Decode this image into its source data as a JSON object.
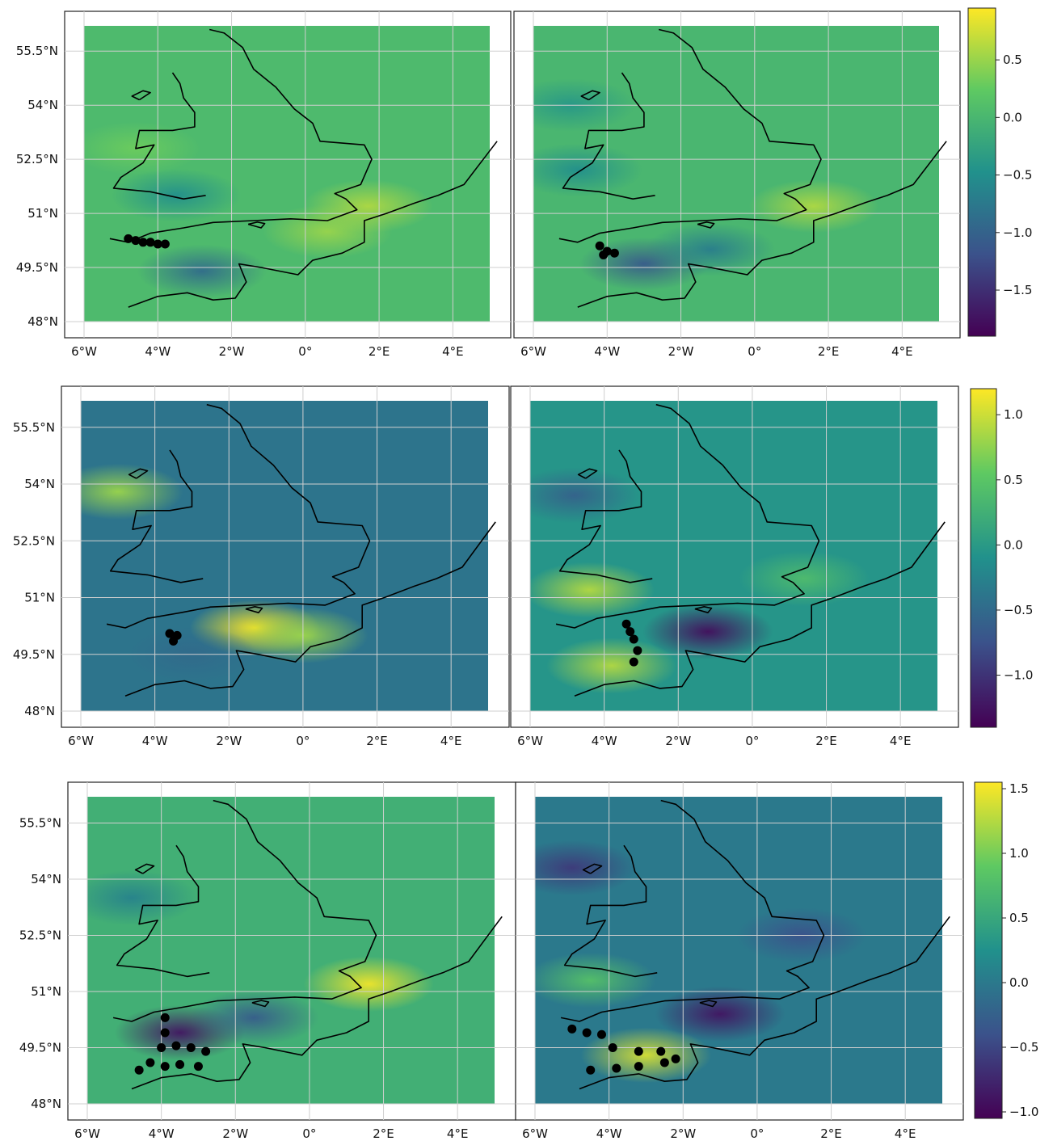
{
  "figure": {
    "background": "#ffffff",
    "colormap": "viridis",
    "colormap_stops": [
      "#440154",
      "#3b528b",
      "#21918c",
      "#5ec962",
      "#fde725"
    ],
    "map_extent": {
      "lon": [
        -6,
        5
      ],
      "lat": [
        48,
        56.2
      ]
    },
    "gridlines": true,
    "lon_ticks": [
      -6,
      -4,
      -2,
      0,
      2,
      4
    ],
    "lon_tick_labels": [
      "6°W",
      "4°W",
      "2°W",
      "0°",
      "2°E",
      "4°E"
    ],
    "lat_ticks": [
      48,
      49.5,
      51,
      52.5,
      54,
      55.5
    ],
    "lat_tick_labels": [
      "48°N",
      "49.5°N",
      "51°N",
      "52.5°N",
      "54°N",
      "55.5°N"
    ]
  },
  "rows": [
    {
      "colorbar": {
        "range": [
          -1.9,
          0.95
        ],
        "ticks": [
          0.5,
          0.0,
          -0.5,
          -1.0,
          -1.5
        ],
        "tick_labels": [
          "0.5",
          "0.0",
          "−0.5",
          "−1.0",
          "−1.5"
        ]
      },
      "panels": [
        {
          "base_value": 0.05,
          "anomalies": [
            {
              "lon": 0.6,
              "lat": 50.5,
              "value": 0.5
            },
            {
              "lon": 1.7,
              "lat": 51.2,
              "value": 0.6
            },
            {
              "lon": -2.8,
              "lat": 49.4,
              "value": -0.9
            },
            {
              "lon": -3.5,
              "lat": 51.5,
              "value": -0.5
            },
            {
              "lon": -4.6,
              "lat": 52.8,
              "value": 0.3
            }
          ],
          "markers": [
            {
              "lon": -4.8,
              "lat": 50.3
            },
            {
              "lon": -4.6,
              "lat": 50.25
            },
            {
              "lon": -4.4,
              "lat": 50.2
            },
            {
              "lon": -4.2,
              "lat": 50.2
            },
            {
              "lon": -4.0,
              "lat": 50.15
            },
            {
              "lon": -3.8,
              "lat": 50.15
            }
          ]
        },
        {
          "base_value": 0.0,
          "anomalies": [
            {
              "lon": 1.6,
              "lat": 51.2,
              "value": 0.6
            },
            {
              "lon": -3.0,
              "lat": 49.6,
              "value": -1.1
            },
            {
              "lon": -1.2,
              "lat": 50.0,
              "value": -0.7
            },
            {
              "lon": -4.8,
              "lat": 52.2,
              "value": -0.5
            },
            {
              "lon": -5.0,
              "lat": 54.0,
              "value": -0.4
            }
          ],
          "markers": [
            {
              "lon": -4.2,
              "lat": 50.1
            },
            {
              "lon": -4.0,
              "lat": 49.95
            },
            {
              "lon": -3.8,
              "lat": 49.9
            },
            {
              "lon": -4.1,
              "lat": 49.85
            }
          ]
        }
      ]
    },
    {
      "colorbar": {
        "range": [
          -1.4,
          1.2
        ],
        "ticks": [
          1.0,
          0.5,
          0.0,
          -0.5,
          -1.0
        ],
        "tick_labels": [
          "1.0",
          "0.5",
          "0.0",
          "−0.5",
          "−1.0"
        ]
      },
      "panels": [
        {
          "base_value": -0.4,
          "anomalies": [
            {
              "lon": -1.3,
              "lat": 50.2,
              "value": 1.5
            },
            {
              "lon": 0.0,
              "lat": 50.0,
              "value": 0.8
            },
            {
              "lon": 2.3,
              "lat": 51.5,
              "value": -0.4
            },
            {
              "lon": -5.0,
              "lat": 53.8,
              "value": 0.8
            },
            {
              "lon": -3.0,
              "lat": 49.5,
              "value": -0.5
            }
          ],
          "markers": [
            {
              "lon": -3.6,
              "lat": 50.05
            },
            {
              "lon": -3.4,
              "lat": 50.0
            },
            {
              "lon": -3.5,
              "lat": 49.85
            }
          ]
        },
        {
          "base_value": -0.05,
          "anomalies": [
            {
              "lon": -1.2,
              "lat": 50.1,
              "value": -1.3
            },
            {
              "lon": -3.8,
              "lat": 49.2,
              "value": 0.9
            },
            {
              "lon": -4.4,
              "lat": 51.2,
              "value": 0.9
            },
            {
              "lon": -4.8,
              "lat": 53.7,
              "value": -0.6
            },
            {
              "lon": 1.4,
              "lat": 51.5,
              "value": 0.4
            }
          ],
          "markers": [
            {
              "lon": -3.4,
              "lat": 50.3
            },
            {
              "lon": -3.3,
              "lat": 50.1
            },
            {
              "lon": -3.2,
              "lat": 49.9
            },
            {
              "lon": -3.1,
              "lat": 49.6
            },
            {
              "lon": -3.2,
              "lat": 49.3
            }
          ]
        }
      ]
    },
    {
      "colorbar": {
        "range": [
          -1.05,
          1.55
        ],
        "ticks": [
          1.5,
          1.0,
          0.5,
          0.0,
          -0.5,
          -1.0
        ],
        "tick_labels": [
          "1.5",
          "1.0",
          "0.5",
          "0.0",
          "−0.5",
          "−1.0"
        ]
      },
      "panels": [
        {
          "base_value": 0.6,
          "anomalies": [
            {
              "lon": -3.5,
              "lat": 49.9,
              "value": -0.9
            },
            {
              "lon": -1.5,
              "lat": 50.3,
              "value": -0.3
            },
            {
              "lon": 1.6,
              "lat": 51.2,
              "value": 1.5
            },
            {
              "lon": -4.8,
              "lat": 53.5,
              "value": 0.1
            }
          ],
          "markers": [
            {
              "lon": -3.9,
              "lat": 50.3
            },
            {
              "lon": -3.9,
              "lat": 49.9
            },
            {
              "lon": -4.0,
              "lat": 49.5
            },
            {
              "lon": -3.6,
              "lat": 49.55
            },
            {
              "lon": -3.2,
              "lat": 49.5
            },
            {
              "lon": -2.8,
              "lat": 49.4
            },
            {
              "lon": -4.3,
              "lat": 49.1
            },
            {
              "lon": -3.9,
              "lat": 49.0
            },
            {
              "lon": -3.5,
              "lat": 49.05
            },
            {
              "lon": -3.0,
              "lat": 49.0
            },
            {
              "lon": -4.6,
              "lat": 48.9
            }
          ]
        },
        {
          "base_value": 0.0,
          "anomalies": [
            {
              "lon": -1.0,
              "lat": 50.4,
              "value": -0.9
            },
            {
              "lon": -3.0,
              "lat": 49.3,
              "value": 1.4
            },
            {
              "lon": -5.0,
              "lat": 54.3,
              "value": -0.6
            },
            {
              "lon": -4.5,
              "lat": 51.3,
              "value": 0.8
            },
            {
              "lon": 1.2,
              "lat": 52.5,
              "value": -0.4
            }
          ],
          "markers": [
            {
              "lon": -5.0,
              "lat": 50.0
            },
            {
              "lon": -4.6,
              "lat": 49.9
            },
            {
              "lon": -4.2,
              "lat": 49.85
            },
            {
              "lon": -3.9,
              "lat": 49.5
            },
            {
              "lon": -3.2,
              "lat": 49.4
            },
            {
              "lon": -2.6,
              "lat": 49.4
            },
            {
              "lon": -4.5,
              "lat": 48.9
            },
            {
              "lon": -3.8,
              "lat": 48.95
            },
            {
              "lon": -3.2,
              "lat": 49.0
            },
            {
              "lon": -2.5,
              "lat": 49.1
            },
            {
              "lon": -2.2,
              "lat": 49.2
            }
          ]
        }
      ]
    }
  ],
  "coast": {
    "main": [
      [
        -5.3,
        50.3
      ],
      [
        -4.8,
        50.2
      ],
      [
        -4.2,
        50.45
      ],
      [
        -3.3,
        50.6
      ],
      [
        -2.5,
        50.75
      ],
      [
        -1.4,
        50.8
      ],
      [
        -0.4,
        50.85
      ],
      [
        0.6,
        50.8
      ],
      [
        1.4,
        51.1
      ],
      [
        1.1,
        51.4
      ],
      [
        0.8,
        51.55
      ],
      [
        1.5,
        51.8
      ],
      [
        1.8,
        52.5
      ],
      [
        1.6,
        52.9
      ],
      [
        0.4,
        53.0
      ],
      [
        0.2,
        53.5
      ],
      [
        -0.3,
        53.9
      ],
      [
        -0.8,
        54.5
      ],
      [
        -1.4,
        55.0
      ],
      [
        -1.7,
        55.6
      ],
      [
        -2.2,
        56.0
      ],
      [
        -2.6,
        56.1
      ]
    ],
    "wales": [
      [
        -2.7,
        51.5
      ],
      [
        -3.3,
        51.4
      ],
      [
        -4.2,
        51.6
      ],
      [
        -5.2,
        51.7
      ],
      [
        -5.0,
        52.0
      ],
      [
        -4.4,
        52.4
      ],
      [
        -4.1,
        52.9
      ],
      [
        -4.6,
        52.8
      ],
      [
        -4.5,
        53.3
      ],
      [
        -3.6,
        53.3
      ],
      [
        -3.0,
        53.4
      ],
      [
        -3.0,
        53.8
      ],
      [
        -3.3,
        54.2
      ],
      [
        -3.4,
        54.6
      ],
      [
        -3.6,
        54.9
      ]
    ],
    "france": [
      [
        -4.8,
        48.4
      ],
      [
        -4.0,
        48.7
      ],
      [
        -3.2,
        48.8
      ],
      [
        -2.5,
        48.6
      ],
      [
        -1.9,
        48.65
      ],
      [
        -1.6,
        49.1
      ],
      [
        -1.8,
        49.6
      ],
      [
        -1.2,
        49.5
      ],
      [
        -0.2,
        49.3
      ],
      [
        0.2,
        49.7
      ],
      [
        1.0,
        49.9
      ],
      [
        1.6,
        50.2
      ],
      [
        1.6,
        50.8
      ],
      [
        2.2,
        51.0
      ],
      [
        3.0,
        51.3
      ],
      [
        3.6,
        51.5
      ],
      [
        4.3,
        51.8
      ],
      [
        4.9,
        52.6
      ],
      [
        5.2,
        53.0
      ]
    ],
    "isle_of_man": [
      [
        -4.5,
        54.15
      ],
      [
        -4.2,
        54.35
      ],
      [
        -4.4,
        54.4
      ],
      [
        -4.7,
        54.25
      ],
      [
        -4.5,
        54.15
      ]
    ],
    "isle_of_wight": [
      [
        -1.55,
        50.7
      ],
      [
        -1.2,
        50.6
      ],
      [
        -1.1,
        50.72
      ],
      [
        -1.3,
        50.76
      ],
      [
        -1.55,
        50.7
      ]
    ]
  }
}
